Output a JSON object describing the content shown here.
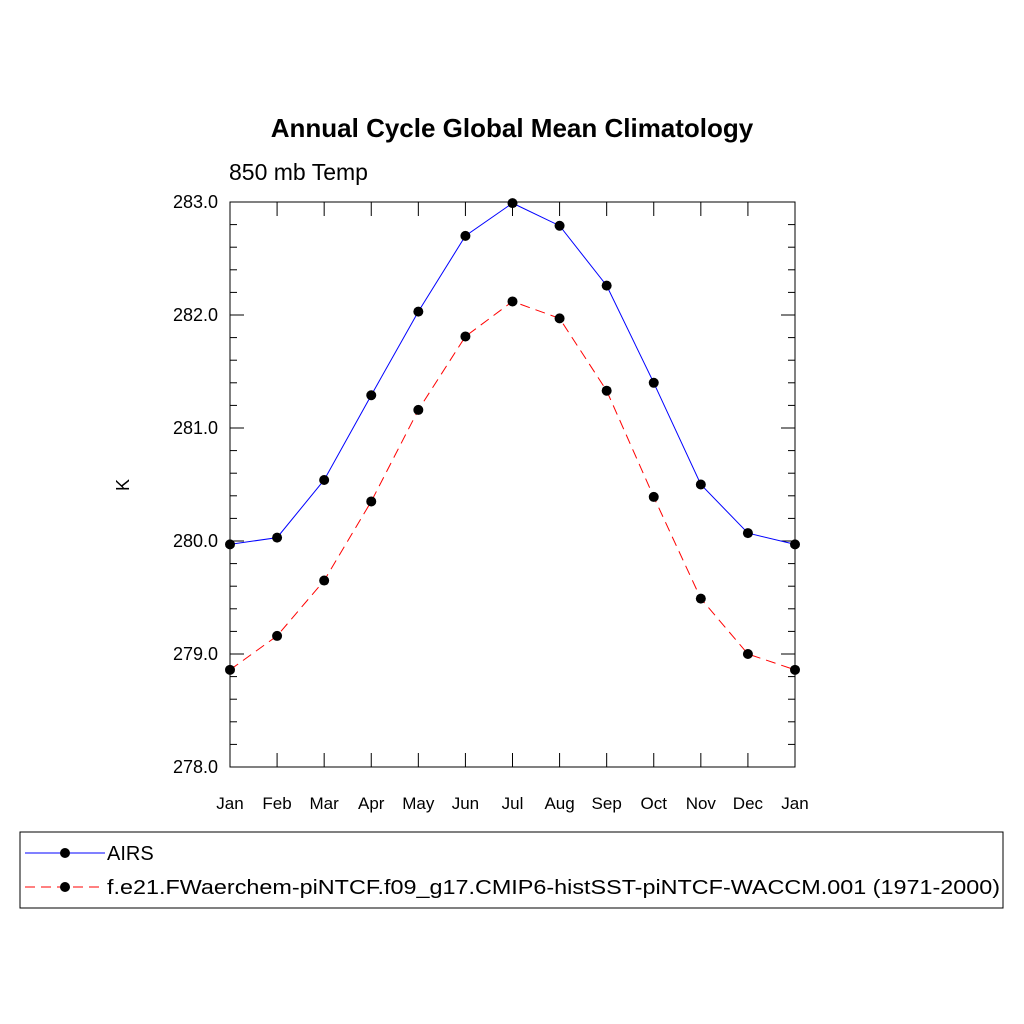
{
  "chart_data": {
    "type": "line",
    "title": "Annual Cycle Global Mean Climatology",
    "subtitle": "850 mb Temp",
    "xlabel": "",
    "ylabel": "K",
    "categories": [
      "Jan",
      "Feb",
      "Mar",
      "Apr",
      "May",
      "Jun",
      "Jul",
      "Aug",
      "Sep",
      "Oct",
      "Nov",
      "Dec",
      "Jan"
    ],
    "yticks": [
      "278.0",
      "279.0",
      "280.0",
      "281.0",
      "282.0",
      "283.0"
    ],
    "ylim": [
      278.0,
      283.0
    ],
    "grid": false,
    "legend_position": "bottom",
    "series": [
      {
        "name": "AIRS",
        "color": "#0000ff",
        "line_style": "solid",
        "values": [
          279.97,
          280.03,
          280.54,
          281.29,
          282.03,
          282.7,
          282.99,
          282.79,
          282.26,
          281.4,
          280.5,
          280.07,
          279.97
        ]
      },
      {
        "name": "f.e21.FWaerchem-piNTCF.f09_g17.CMIP6-histSST-piNTCF-WACCM.001 (1971-2000)",
        "color": "#ff0000",
        "line_style": "dashed",
        "values": [
          278.86,
          279.16,
          279.65,
          280.35,
          281.16,
          281.81,
          282.12,
          281.97,
          281.33,
          280.39,
          279.49,
          279.0,
          278.86
        ]
      }
    ]
  }
}
